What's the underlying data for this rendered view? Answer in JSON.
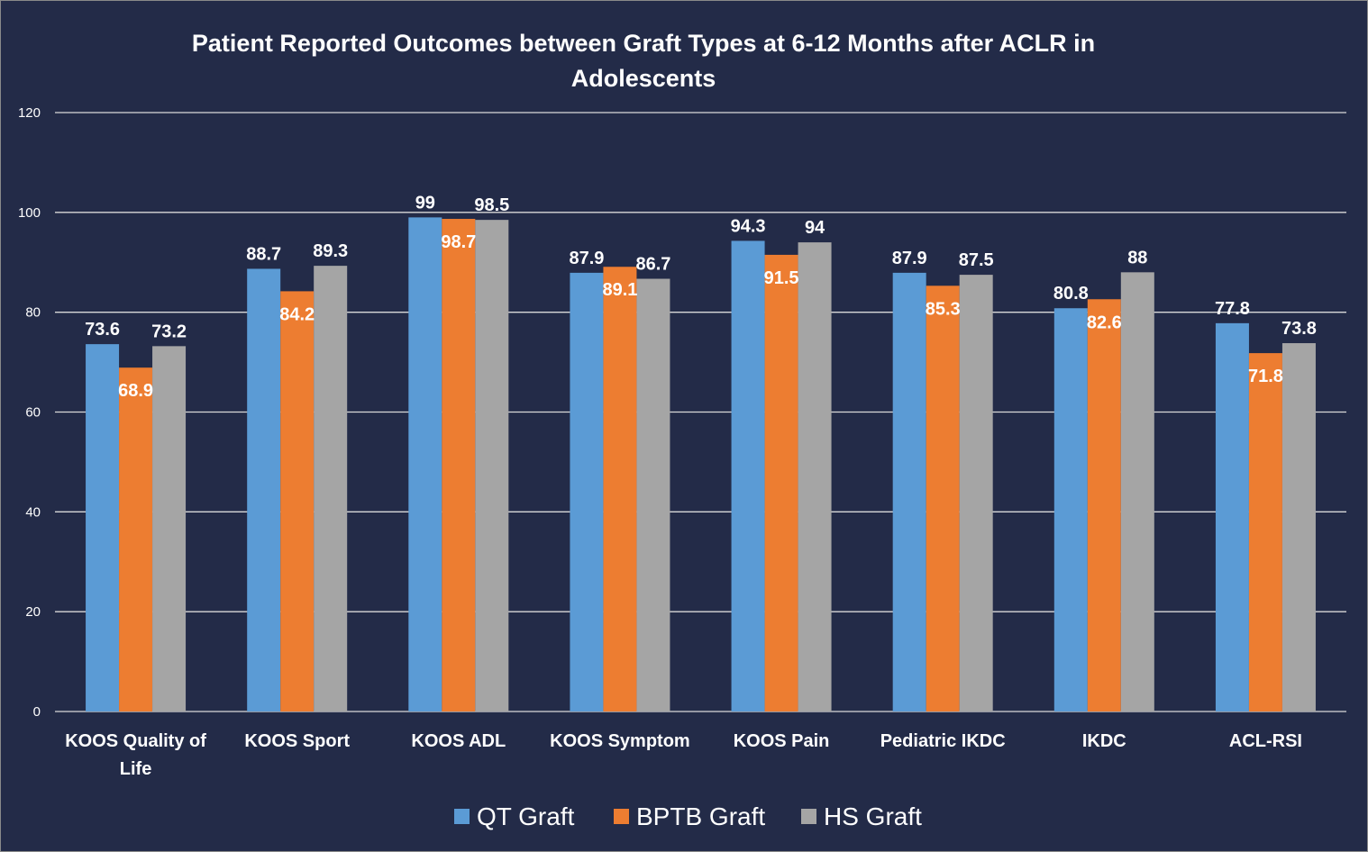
{
  "chart_data": {
    "type": "bar",
    "title_lines": [
      "Patient Reported Outcomes between Graft Types at 6-12 Months after ACLR in",
      "Adolescents"
    ],
    "categories": [
      [
        "KOOS Quality of",
        "Life"
      ],
      [
        "KOOS Sport"
      ],
      [
        "KOOS ADL"
      ],
      [
        "KOOS Symptom"
      ],
      [
        "KOOS Pain"
      ],
      [
        "Pediatric IKDC"
      ],
      [
        "IKDC"
      ],
      [
        "ACL-RSI"
      ]
    ],
    "series": [
      {
        "name": "QT Graft",
        "color": "#5b9bd5",
        "values": [
          73.6,
          88.7,
          99,
          87.9,
          94.3,
          87.9,
          80.8,
          77.8
        ],
        "label_color": "#ffffff",
        "label_position": "above"
      },
      {
        "name": "BPTB Graft",
        "color": "#ed7d31",
        "values": [
          68.9,
          84.2,
          98.7,
          89.1,
          91.5,
          85.3,
          82.6,
          71.8
        ],
        "label_color": "#ffffff",
        "label_position": "inside"
      },
      {
        "name": "HS Graft",
        "color": "#a5a5a5",
        "values": [
          73.2,
          89.3,
          98.5,
          86.7,
          94,
          87.5,
          88,
          73.8
        ],
        "label_color": "#ffffff",
        "label_position": "above"
      }
    ],
    "y_ticks": [
      0,
      20,
      40,
      60,
      80,
      100,
      120
    ],
    "ylim": [
      0,
      120
    ],
    "xlabel": "",
    "ylabel": "",
    "grid": true,
    "legend_position": "bottom",
    "background_color": "#232b48",
    "text_color": "#ffffff"
  }
}
